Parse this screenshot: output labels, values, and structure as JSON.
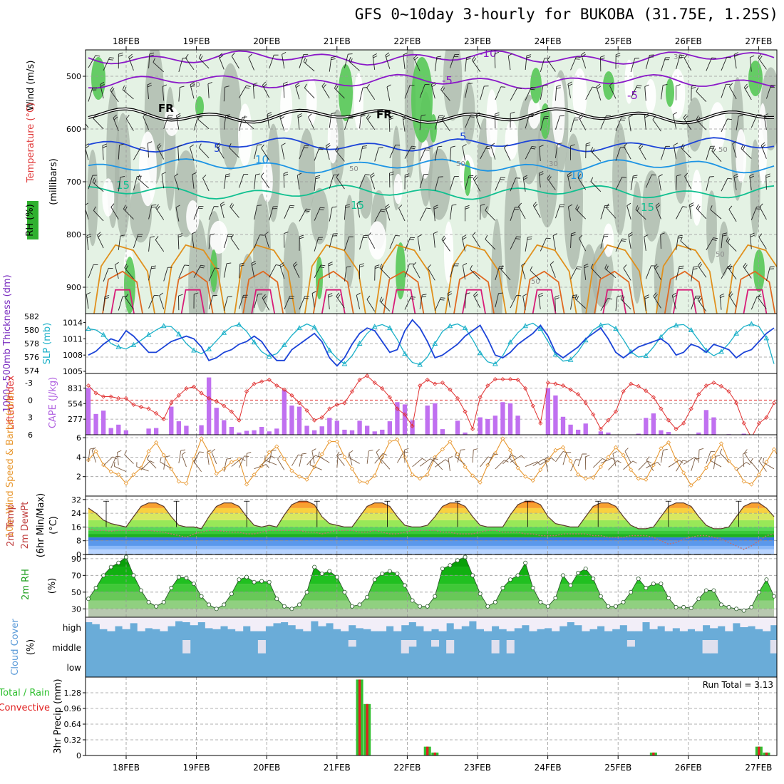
{
  "title": "GFS 0~10day 3-hourly for BUKOBA (31.75E, 1.25S)",
  "dates": [
    "18FEB",
    "19FEB",
    "20FEB",
    "21FEB",
    "22FEB",
    "23FEB",
    "24FEB",
    "25FEB",
    "26FEB",
    "27FEB"
  ],
  "colors": {
    "frame": "#000000",
    "grid": "#999999",
    "green_fill": "#56c856",
    "rh_light": "#e4f2e4",
    "rh_grey": "#a8b4a8",
    "purple": "#8a18c8",
    "blue": "#1c44d8",
    "cyan": "#1c94e4",
    "teal": "#10c090",
    "orange": "#e0901c",
    "deep_orange": "#e06820",
    "magenta": "#d81c78",
    "cape": "#c070f0",
    "li_red": "#e03030",
    "wind_orange": "#e89830",
    "cloud_blue": "#6aacd8",
    "precip_green": "#30c030",
    "precip_red": "#e02020"
  },
  "chart_data": [
    {
      "type": "heatmap",
      "panel": "vertical cross-section",
      "ylabel": "(millibars)",
      "legend_labels": [
        "Wind (m/s)",
        "Temperature (°C)",
        "RH (%)"
      ],
      "yticks": [
        500,
        600,
        700,
        800,
        900
      ],
      "ylim": [
        950,
        450
      ],
      "temperature_contours": [
        {
          "label": "-10",
          "level_mb": 465
        },
        {
          "label": "-5",
          "level_mb": 510
        },
        {
          "label": "FR",
          "level_mb": 575
        },
        {
          "label": "5",
          "level_mb": 630
        },
        {
          "label": "10",
          "level_mb": 670
        },
        {
          "label": "15",
          "level_mb": 720
        }
      ],
      "rh_contour_labels": [
        "30",
        "50"
      ]
    },
    {
      "type": "line",
      "panel": "thickness and SLP",
      "ylabel_left": "1000~500mb Thickness (dm)",
      "ylabel_right": "SLP (mb)",
      "yticks_left": [
        574,
        576,
        578,
        580,
        582
      ],
      "yticks_right": [
        1005,
        1008,
        1011,
        1014
      ],
      "ylim_left": [
        574,
        582
      ],
      "ylim_right": [
        1005,
        1015
      ],
      "series": [
        {
          "name": "SLP (mb)",
          "color": "#1c44d8",
          "values": [
            1008,
            1008.7,
            1010,
            1011,
            1010.5,
            1012.5,
            1011.5,
            1010,
            1008.5,
            1008.5,
            1009.5,
            1010.5,
            1011,
            1011.5,
            1011,
            1009.5,
            1007,
            1007.5,
            1008.5,
            1009,
            1010,
            1010.5,
            1011.5,
            1010.5,
            1008.5,
            1007,
            1007,
            1009,
            1010,
            1011,
            1012,
            1010.5,
            1007.5,
            1006,
            1007.5,
            1010,
            1012,
            1013,
            1012.5,
            1010.5,
            1008.5,
            1009,
            1012.5,
            1014.5,
            1013,
            1010.5,
            1007.5,
            1008,
            1009,
            1010,
            1011.5,
            1012.5,
            1013.5,
            1011,
            1008,
            1007.5,
            1008.5,
            1010,
            1011,
            1012,
            1013.5,
            1011.5,
            1008.5,
            1007.5,
            1008.5,
            1009.5,
            1011,
            1012,
            1013,
            1011,
            1008.5,
            1007.5,
            1008.5,
            1009.5,
            1010,
            1010.5,
            1011,
            1010,
            1008,
            1008.5,
            1010,
            1009.5,
            1008.5,
            1010,
            1009.5,
            1009,
            1007.5,
            1008.5,
            1009,
            1010.5,
            1012,
            1013
          ]
        },
        {
          "name": "1000~500mb Thickness (dm)",
          "color": "#1ab0c8",
          "values": [
            580.2,
            580,
            579.3,
            578,
            577.5,
            577.2,
            577.8,
            578.5,
            579.3,
            580,
            580.6,
            580.5,
            579.4,
            578,
            577,
            576.5,
            577.2,
            578.4,
            579.6,
            580.5,
            580.8,
            579.8,
            578.2,
            576.8,
            576.1,
            576.5,
            577.8,
            579.2,
            580.3,
            580.9,
            580.4,
            578.8,
            577,
            575.8,
            575,
            576.2,
            578,
            579.5,
            580.5,
            580.8,
            580.3,
            578.6,
            576.5,
            575.2,
            574.9,
            576,
            578,
            579.8,
            580.6,
            580.9,
            580.3,
            578.6,
            576.6,
            575.3,
            575,
            576.2,
            578.2,
            579.6,
            580.6,
            581,
            580.2,
            578.3,
            576.4,
            575.4,
            575.6,
            576.8,
            578.5,
            580,
            580.7,
            580.9,
            580.2,
            578.6,
            576.8,
            576,
            576.2,
            577.5,
            579,
            580.2,
            580.7,
            580.8,
            580,
            578.5,
            577,
            576.2,
            576.8,
            578,
            579.5,
            580.5,
            580.9,
            580.5,
            578.8,
            575
          ]
        }
      ]
    },
    {
      "type": "bar",
      "panel": "lifted index and CAPE",
      "ylabel_left": "Lifted Index",
      "ylabel_right": "CAPE (J/kg)",
      "yticks_left": [
        "-3",
        "0",
        "3",
        "6"
      ],
      "yticks_right": [
        277,
        554,
        831
      ],
      "cape_values": [
        831,
        370,
        430,
        120,
        180,
        80,
        0,
        0,
        110,
        120,
        0,
        500,
        240,
        160,
        0,
        170,
        1020,
        480,
        260,
        140,
        40,
        70,
        80,
        140,
        60,
        110,
        800,
        520,
        500,
        160,
        80,
        150,
        300,
        250,
        90,
        80,
        250,
        160,
        60,
        90,
        240,
        580,
        540,
        260,
        0,
        520,
        560,
        100,
        0,
        250,
        40,
        0,
        310,
        280,
        340,
        580,
        560,
        340,
        0,
        0,
        0,
        830,
        700,
        320,
        180,
        90,
        200,
        0,
        60,
        40,
        0,
        0,
        0,
        20,
        300,
        380,
        80,
        50,
        0,
        0,
        0,
        40,
        440,
        310,
        0,
        10,
        0,
        20,
        0,
        0,
        0,
        0
      ],
      "lifted_index_values": [
        -2.5,
        -1.2,
        -0.6,
        -0.6,
        -0.3,
        -0.3,
        0.8,
        1.2,
        1.5,
        2.3,
        3.3,
        0.5,
        -0.8,
        -2.0,
        -2.3,
        -1.2,
        -0.3,
        0.2,
        1.0,
        2.0,
        3.5,
        -1.5,
        -2.8,
        -3.2,
        -3.5,
        -2.5,
        -1.8,
        -0.8,
        0.5,
        1.8,
        3.5,
        3.0,
        1.5,
        0.8,
        0.5,
        -1.5,
        -3.5,
        -4.2,
        -3.0,
        -2.0,
        -0.5,
        1.5,
        2.5,
        4.5,
        -2.5,
        -3.5,
        -2.8,
        -3.0,
        -1.8,
        -0.3,
        2.0,
        5.0,
        -0.5,
        -2.5,
        -3.6,
        -3.6,
        -3.6,
        -3.5,
        -2.0,
        1.0,
        4.0,
        -3.0,
        -2.8,
        -2.5,
        -1.8,
        -1.0,
        0.5,
        2.5,
        5.0,
        3.5,
        2.0,
        -1.5,
        -2.8,
        -2.4,
        -1.6,
        -0.5,
        1.5,
        3.5,
        5.0,
        4.0,
        1.5,
        -1.0,
        -2.5,
        -3.0,
        -2.4,
        -1.5,
        0.5,
        4.0,
        6.5,
        4.0,
        3.0,
        0.5
      ]
    },
    {
      "type": "line",
      "panel": "10m wind",
      "ylabel": "10m Wind Speed & Barbs (m/s)",
      "yticks": [
        2,
        4,
        6
      ],
      "ylim": [
        0,
        6.2
      ],
      "values": [
        3.7,
        4.6,
        3.2,
        2.5,
        2.2,
        1.3,
        2.2,
        2.9,
        4.6,
        5.5,
        4.2,
        2.8,
        1.5,
        1.3,
        3.8,
        5.9,
        4.5,
        2.3,
        2.8,
        3.5,
        3.8,
        1.2,
        2.2,
        3.1,
        4.5,
        5.1,
        3.8,
        2.6,
        2.0,
        1.7,
        3.0,
        4.3,
        5.6,
        5.6,
        4.0,
        2.8,
        1.5,
        1.4,
        2.1,
        4.0,
        5.6,
        5.8,
        4.0,
        2.2,
        1.8,
        2.2,
        4.0,
        4.8,
        5.6,
        4.3,
        3.0,
        2.1,
        1.4,
        3.2,
        4.4,
        5.9,
        4.7,
        2.9,
        2.0,
        1.6,
        2.7,
        3.7,
        4.7,
        5.0,
        3.6,
        2.2,
        1.8,
        1.9,
        3.0,
        4.0,
        5.0,
        4.2,
        2.7,
        1.8,
        1.7,
        3.2,
        4.9,
        5.5,
        3.7,
        2.4,
        1.1,
        1.8,
        2.9,
        4.1,
        5.4,
        3.6,
        2.8,
        1.5,
        1.2,
        2.2,
        3.5,
        4.8,
        3.5
      ]
    },
    {
      "type": "area",
      "panel": "2m temperature and dew point",
      "ylabel": "2m Temp 2m DewPt (6hr Min/Max) (°C)",
      "yticks": [
        0,
        8,
        16,
        24,
        32
      ],
      "ylim": [
        0,
        34
      ],
      "temperature": [
        27,
        24,
        20,
        18,
        17,
        16,
        22,
        28,
        30,
        30,
        28,
        22,
        17,
        16,
        16,
        15,
        22,
        28,
        30,
        30,
        28,
        22,
        17,
        16,
        17,
        16,
        23,
        29,
        31,
        31,
        29,
        22,
        18,
        17,
        16,
        16,
        22,
        28,
        30,
        30,
        28,
        22,
        17,
        16,
        16,
        17,
        22,
        28,
        30,
        30,
        28,
        22,
        17,
        16,
        16,
        16,
        23,
        29,
        31,
        31,
        29,
        22,
        18,
        17,
        16,
        16,
        22,
        28,
        30,
        30,
        28,
        22,
        17,
        15,
        15,
        16,
        22,
        28,
        30,
        30,
        28,
        22,
        17,
        15,
        15,
        16,
        22,
        28,
        30,
        30,
        27,
        22
      ],
      "dew_point": [
        15,
        14,
        14,
        13.5,
        14,
        14,
        14,
        14,
        14,
        13.5,
        13,
        12,
        11,
        10,
        12,
        13,
        14,
        14,
        13.5,
        13,
        13,
        12,
        12,
        13,
        14,
        14,
        14,
        14,
        14,
        13,
        13,
        12,
        13,
        14,
        14,
        14,
        13,
        13,
        14,
        13,
        12,
        12,
        13,
        14,
        14,
        14,
        14,
        13,
        13,
        12,
        12,
        12,
        13,
        14,
        14,
        13,
        13,
        13,
        12,
        12,
        11,
        11,
        11,
        12,
        12,
        12,
        12,
        11,
        11,
        10,
        10,
        10,
        11,
        11,
        11,
        10,
        8,
        6,
        7,
        9,
        10,
        11,
        11,
        10,
        9,
        7,
        5,
        3,
        5,
        8,
        11,
        12
      ]
    },
    {
      "type": "area",
      "panel": "2m RH",
      "ylabel": "2m RH (%)",
      "yticks": [
        30,
        50,
        70,
        90
      ],
      "ylim": [
        20,
        95
      ],
      "values": [
        42,
        55,
        70,
        80,
        85,
        92,
        70,
        52,
        38,
        33,
        38,
        55,
        68,
        67,
        60,
        45,
        35,
        30,
        35,
        48,
        65,
        68,
        62,
        63,
        62,
        42,
        33,
        30,
        35,
        50,
        80,
        72,
        75,
        68,
        50,
        33,
        35,
        44,
        65,
        72,
        75,
        72,
        58,
        40,
        33,
        33,
        45,
        78,
        82,
        88,
        92,
        70,
        48,
        33,
        38,
        55,
        65,
        70,
        85,
        55,
        38,
        33,
        43,
        70,
        58,
        73,
        78,
        66,
        45,
        33,
        33,
        38,
        50,
        66,
        55,
        60,
        60,
        43,
        32,
        32,
        31,
        42,
        52,
        52,
        35,
        32,
        30,
        28,
        32,
        50,
        65,
        45
      ]
    },
    {
      "type": "heatmap",
      "panel": "cloud cover",
      "ylabel": "Cloud Cover (%)",
      "levels": [
        "high",
        "middle",
        "low"
      ],
      "high_cover_pct": [
        75,
        65,
        40,
        30,
        55,
        40,
        70,
        30,
        45,
        40,
        30,
        55,
        80,
        75,
        60,
        75,
        45,
        40,
        55,
        40,
        30,
        55,
        30,
        30,
        55,
        70,
        75,
        60,
        40,
        30,
        80,
        55,
        70,
        40,
        30,
        60,
        45,
        40,
        30,
        30,
        55,
        30,
        60,
        75,
        55,
        30,
        40,
        30,
        70,
        40,
        55,
        80,
        40,
        30,
        55,
        40,
        30,
        45,
        60,
        30,
        40,
        45,
        30,
        55,
        75,
        60,
        30,
        40,
        55,
        30,
        40,
        60,
        30,
        30,
        75,
        40,
        55,
        30,
        45,
        30,
        40,
        30,
        60,
        45,
        55,
        30,
        70,
        50,
        55,
        40,
        30,
        60
      ],
      "middle_cover_pct": [
        0,
        0,
        0,
        0,
        0,
        0,
        0,
        0,
        0,
        0,
        0,
        0,
        0,
        20,
        0,
        0,
        0,
        0,
        0,
        0,
        0,
        0,
        0,
        20,
        0,
        0,
        0,
        0,
        0,
        0,
        0,
        0,
        0,
        0,
        0,
        10,
        0,
        0,
        0,
        0,
        0,
        0,
        20,
        10,
        0,
        0,
        10,
        0,
        20,
        0,
        0,
        0,
        0,
        0,
        20,
        0,
        20,
        0,
        0,
        0,
        0,
        0,
        0,
        0,
        0,
        0,
        0,
        0,
        0,
        0,
        0,
        0,
        10,
        0,
        0,
        0,
        0,
        0,
        0,
        0,
        0,
        0,
        20,
        20,
        0,
        0,
        0,
        0,
        0,
        0,
        0,
        20
      ]
    },
    {
      "type": "bar",
      "panel": "3hr precipitation",
      "ylabel": "3hr Precip (mm)",
      "legend_labels": [
        "Total / Rain",
        "Convective"
      ],
      "annotation": "Run Total = 3.13",
      "yticks": [
        "0",
        "0.32",
        "0.64",
        "0.96",
        "1.28"
      ],
      "ylim": [
        0,
        1.6
      ],
      "bars": [
        {
          "index": 36,
          "total": 1.55
        },
        {
          "index": 37,
          "total": 1.05
        },
        {
          "index": 45,
          "total": 0.18
        },
        {
          "index": 46,
          "total": 0.06
        },
        {
          "index": 75,
          "total": 0.06
        },
        {
          "index": 89,
          "total": 0.18
        },
        {
          "index": 90,
          "total": 0.06
        }
      ]
    }
  ]
}
